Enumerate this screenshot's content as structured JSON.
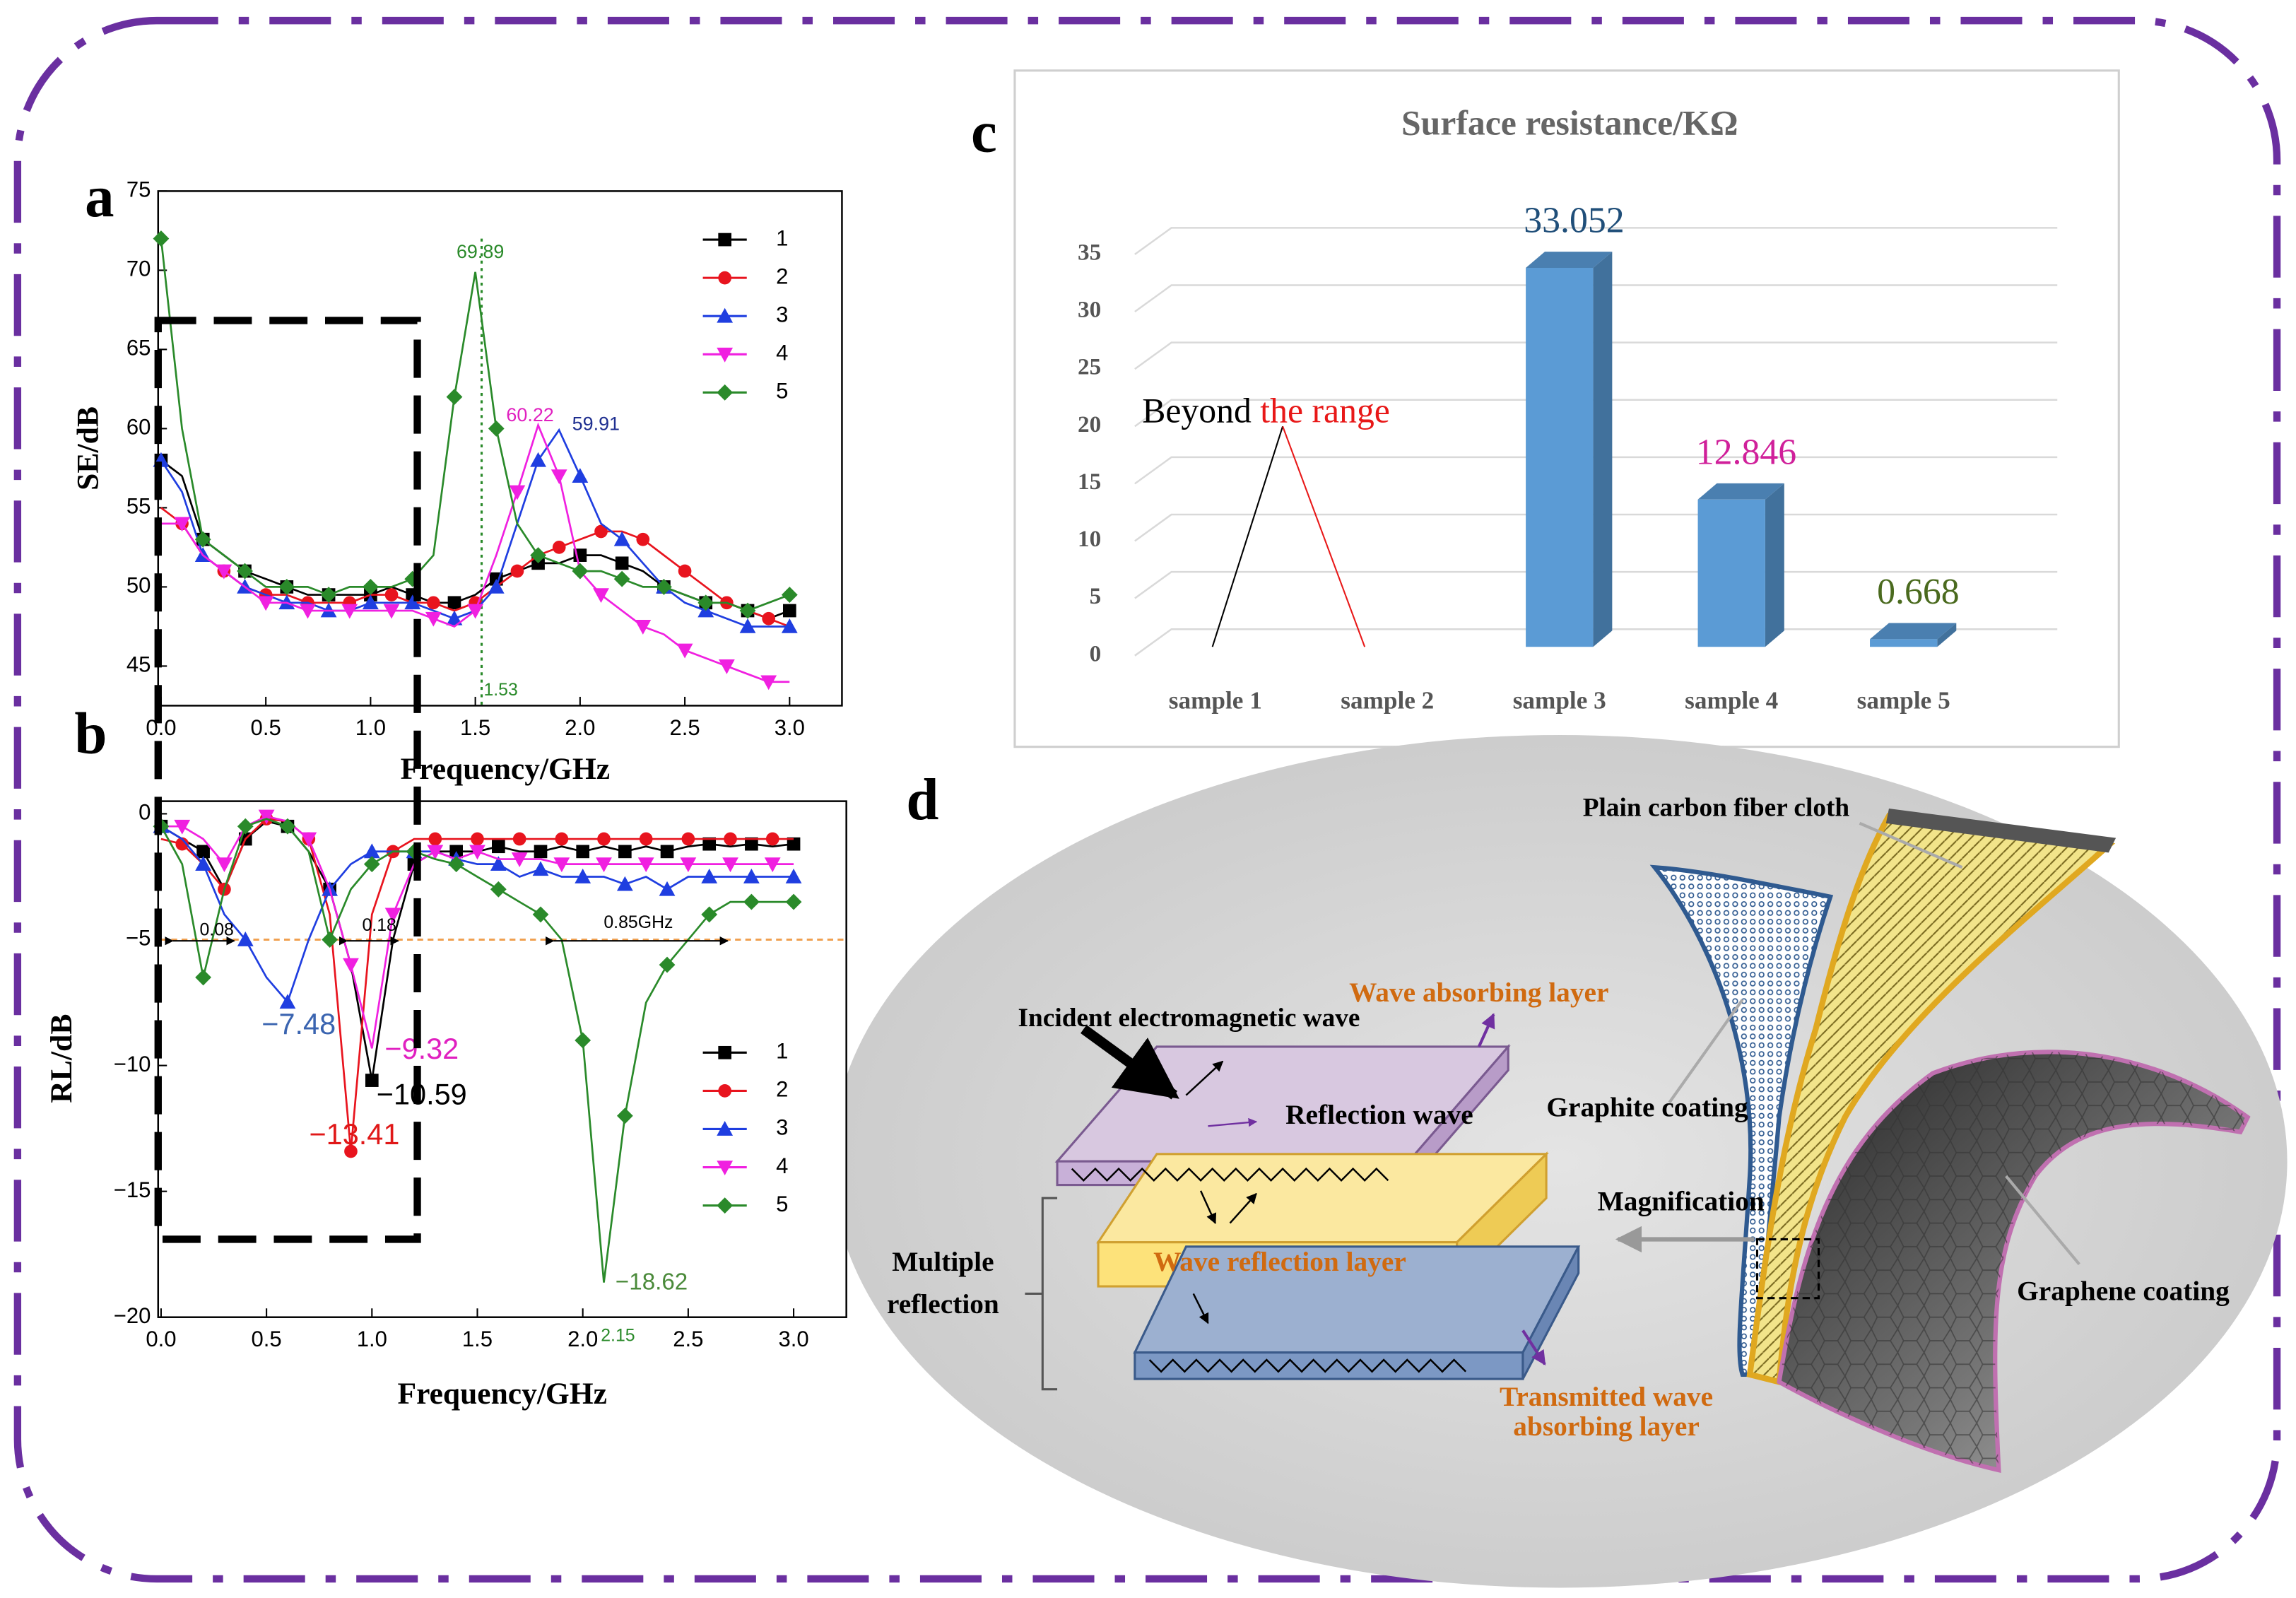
{
  "chart_data": [
    {
      "type": "line",
      "panel": "a",
      "xlabel": "Frequency/GHz",
      "ylabel": "SE/dB",
      "x": [
        0,
        0.1,
        0.2,
        0.3,
        0.4,
        0.5,
        0.6,
        0.7,
        0.8,
        0.9,
        1.0,
        1.1,
        1.2,
        1.3,
        1.4,
        1.5,
        1.6,
        1.7,
        1.8,
        1.9,
        2.0,
        2.1,
        2.2,
        2.3,
        2.4,
        2.5,
        2.6,
        2.7,
        2.8,
        2.9,
        3.0
      ],
      "xlim": [
        0,
        3.25
      ],
      "ylim": [
        42.5,
        75
      ],
      "xticks": [
        {
          "value": 0,
          "label": "0.0"
        },
        0.5,
        {
          "value": 1,
          "label": "1.0"
        },
        1.5,
        {
          "value": 2,
          "label": "2.0"
        },
        2.5,
        {
          "value": 3,
          "label": "3.0"
        }
      ],
      "yticks": [
        45,
        50,
        55,
        60,
        65,
        70,
        75
      ],
      "series": [
        {
          "name": "1",
          "color": "#000000",
          "values": [
            58,
            57,
            53,
            52,
            51,
            50.5,
            50,
            49.5,
            49.5,
            49.5,
            49.5,
            50,
            49.5,
            49,
            49,
            49.5,
            50.5,
            51,
            51.5,
            51.5,
            52,
            52,
            51.5,
            51,
            50,
            49.5,
            49,
            49,
            48.5,
            48,
            48.5
          ]
        },
        {
          "name": "2",
          "color": "#e8141e",
          "values": [
            55,
            54,
            52,
            51,
            50,
            49.5,
            49.5,
            49,
            49,
            49,
            49.5,
            49.5,
            49,
            49,
            48.5,
            49,
            50,
            51,
            52,
            52.5,
            53,
            53.5,
            53.5,
            53,
            52,
            51,
            50,
            49,
            48.5,
            48,
            47.5
          ]
        },
        {
          "name": "3",
          "color": "#1f3ee0",
          "values": [
            58,
            56,
            52,
            51,
            50,
            49.5,
            49,
            49,
            48.5,
            48.5,
            49,
            49,
            49,
            48.5,
            48,
            48.5,
            50,
            54,
            58,
            59.91,
            57,
            54,
            53,
            51.5,
            50,
            49,
            48.5,
            48,
            47.5,
            47.5,
            47.5
          ]
        },
        {
          "name": "4",
          "color": "#f020e0",
          "values": [
            54,
            54,
            52,
            51,
            50,
            49,
            49,
            48.5,
            48.5,
            48.5,
            48.5,
            48.5,
            48.5,
            48,
            47.5,
            48.5,
            52,
            56,
            60.22,
            57,
            51,
            49.5,
            48.5,
            47.5,
            47,
            46,
            45.5,
            45,
            44.5,
            44,
            44
          ]
        },
        {
          "name": "5",
          "color": "#2a8a2a",
          "values": [
            72,
            60,
            53,
            52,
            51,
            50,
            50,
            50,
            49.5,
            50,
            50,
            50,
            50.5,
            52,
            62,
            69.89,
            60,
            54,
            52,
            51.5,
            51,
            51,
            50.5,
            50,
            50,
            49.5,
            49,
            49,
            48.5,
            49,
            49.5
          ]
        }
      ],
      "vline": 1.53,
      "vline_color": "#2a8a2a",
      "annotations": [
        {
          "text": "69.89",
          "color": "#2a8a2a"
        },
        {
          "text": "60.22",
          "color": "#e020c0"
        },
        {
          "text": "59.91",
          "color": "#1f2f90"
        },
        {
          "text": "1.53",
          "color": "#2a8a2a"
        }
      ]
    },
    {
      "type": "line",
      "panel": "b",
      "xlabel": "Frequency/GHz",
      "ylabel": "RL/dB",
      "x": [
        0,
        0.1,
        0.2,
        0.3,
        0.4,
        0.5,
        0.6,
        0.7,
        0.8,
        0.9,
        1.0,
        1.1,
        1.2,
        1.3,
        1.4,
        1.5,
        1.6,
        1.7,
        1.8,
        1.9,
        2.0,
        2.1,
        2.2,
        2.3,
        2.4,
        2.5,
        2.6,
        2.7,
        2.8,
        2.9,
        3.0
      ],
      "xlim": [
        0,
        3.25
      ],
      "ylim": [
        -20,
        0.5
      ],
      "xticks": [
        {
          "value": 0,
          "label": "0.0"
        },
        0.5,
        {
          "value": 1,
          "label": "1.0"
        },
        1.5,
        {
          "value": 2,
          "label": "2.0"
        },
        2.5,
        {
          "value": 3,
          "label": "3.0"
        }
      ],
      "yticks": [
        0,
        {
          "value": -5,
          "label": "−5"
        },
        {
          "value": -10,
          "label": "−10"
        },
        {
          "value": -15,
          "label": "−15"
        },
        {
          "value": -20,
          "label": "−20"
        }
      ],
      "series": [
        {
          "name": "1",
          "color": "#000000",
          "values": [
            -0.5,
            -1,
            -1.5,
            -3,
            -1,
            -0.3,
            -0.5,
            -1.5,
            -3,
            -6,
            -10.59,
            -5,
            -2,
            -1.5,
            -1.5,
            -1.5,
            -1.3,
            -1.5,
            -1.5,
            -1.3,
            -1.5,
            -1.3,
            -1.5,
            -1.3,
            -1.5,
            -1.3,
            -1.2,
            -1.3,
            -1.2,
            -1.3,
            -1.2
          ]
        },
        {
          "name": "2",
          "color": "#e8141e",
          "values": [
            -1,
            -1.2,
            -2,
            -3,
            -1,
            -0.2,
            -0.3,
            -1,
            -4,
            -13.41,
            -4,
            -1.5,
            -1,
            -1,
            -1,
            -1,
            -1,
            -1,
            -1,
            -1,
            -1,
            -1,
            -1,
            -1,
            -1,
            -1,
            -1,
            -1,
            -1,
            -1,
            -1
          ]
        },
        {
          "name": "3",
          "color": "#1f3ee0",
          "values": [
            -0.5,
            -1,
            -2,
            -4,
            -5,
            -6.5,
            -7.48,
            -5,
            -3,
            -2,
            -1.5,
            -1.5,
            -1.5,
            -1.5,
            -1.8,
            -2,
            -2,
            -2.5,
            -2.2,
            -2.5,
            -2.5,
            -2.5,
            -2.8,
            -2.5,
            -3,
            -2.5,
            -2.5,
            -2.5,
            -2.5,
            -2.5,
            -2.5
          ]
        },
        {
          "name": "4",
          "color": "#f020e0",
          "values": [
            -0.5,
            -0.5,
            -1,
            -2,
            -0.5,
            -0.1,
            -0.3,
            -1,
            -3,
            -6,
            -9.32,
            -4,
            -2,
            -1.5,
            -1.8,
            -1.5,
            -1.8,
            -1.8,
            -1.8,
            -2,
            -2,
            -2,
            -2,
            -2,
            -2,
            -2,
            -2,
            -2,
            -2,
            -2,
            -2
          ]
        },
        {
          "name": "5",
          "color": "#2a8a2a",
          "values": [
            -0.5,
            -2,
            -6.5,
            -3,
            -0.5,
            -0.2,
            -0.5,
            -1.5,
            -5,
            -3,
            -2,
            -1.5,
            -1.5,
            -1.8,
            -2,
            -2.5,
            -3,
            -3.5,
            -4,
            -5,
            -9,
            -18.62,
            -12,
            -7.5,
            -6,
            -5,
            -4,
            -3.5,
            -3.5,
            -3.5,
            -3.5
          ]
        }
      ],
      "reference_line": -5,
      "reference_color": "#f0a050",
      "annotations": [
        {
          "text": "0.08",
          "color": "#000000"
        },
        {
          "text": "0.18",
          "color": "#000000"
        },
        {
          "text": "0.85GHz",
          "color": "#000000"
        },
        {
          "text": "−7.48",
          "color": "#3a64b0"
        },
        {
          "text": "−9.32",
          "color": "#e020c0"
        },
        {
          "text": "−10.59",
          "color": "#000000"
        },
        {
          "text": "−13.41",
          "color": "#e01818"
        },
        {
          "text": "−18.62",
          "color": "#4a8a3a"
        },
        {
          "text": "2.15",
          "color": "#2a8a2a"
        }
      ]
    },
    {
      "type": "bar3d",
      "panel": "c",
      "title": "Surface resistance/KΩ",
      "categories": [
        "sample 1",
        "sample 2",
        "sample 3",
        "sample 4",
        "sample 5"
      ],
      "values": [
        null,
        null,
        33.052,
        12.846,
        0.668
      ],
      "value_label_colors": [
        null,
        null,
        "#1f4e79",
        "#d0209a",
        "#4a6a1e"
      ],
      "color": "#5b9bd5",
      "ylim": [
        0,
        35
      ],
      "yticks": [
        0,
        5,
        10,
        15,
        20,
        25,
        30,
        35
      ],
      "grid": true,
      "annotation": [
        "Beyond",
        "the range"
      ],
      "annotation_colors": [
        "#000000",
        "#e81818"
      ]
    }
  ],
  "diagram": {
    "panel": "d",
    "labels": [
      "Plain carbon fiber cloth",
      "Wave absorbing layer",
      "Incident electromagnetic wave",
      "Reflection wave",
      "Graphite coating",
      "Magnification",
      "Multiple",
      "reflection",
      "Wave reflection layer",
      "Graphene coating",
      "Transmitted wave",
      "absorbing layer"
    ]
  }
}
